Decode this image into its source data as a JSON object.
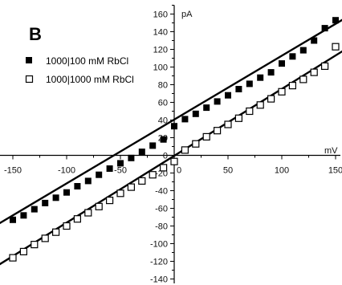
{
  "chart_data": {
    "type": "scatter",
    "panel_label": "B",
    "xlabel": "mV",
    "ylabel": "pA",
    "xlim": [
      -175,
      175
    ],
    "ylim": [
      -145,
      170
    ],
    "x_ticks": [
      -150,
      -100,
      -50,
      0,
      50,
      100,
      150
    ],
    "y_ticks": [
      -140,
      -120,
      -100,
      -80,
      -60,
      -40,
      -20,
      0,
      20,
      40,
      60,
      80,
      100,
      120,
      140,
      160
    ],
    "legend_position": "top-left",
    "series": [
      {
        "name": "1000|100 mM RbCl",
        "marker": "filled-square",
        "color": "#000000",
        "x": [
          -150,
          -140,
          -130,
          -120,
          -110,
          -100,
          -90,
          -80,
          -70,
          -60,
          -50,
          -40,
          -30,
          -20,
          -10,
          0,
          10,
          20,
          30,
          40,
          50,
          60,
          70,
          80,
          90,
          100,
          110,
          120,
          130,
          140,
          150
        ],
        "y": [
          -73,
          -68,
          -61,
          -54,
          -48,
          -42,
          -35,
          -29,
          -22,
          -15,
          -9,
          -3,
          4,
          11,
          18,
          33,
          41,
          47,
          54,
          61,
          68,
          75,
          81,
          88,
          94,
          104,
          112,
          119,
          130,
          144,
          153
        ],
        "fit": {
          "x": [
            -175,
            175
          ],
          "y": [
            -86,
            167
          ]
        }
      },
      {
        "name": "1000|1000 mM RbCl",
        "marker": "open-square",
        "color": "#000000",
        "x": [
          -150,
          -140,
          -130,
          -120,
          -110,
          -100,
          -90,
          -80,
          -70,
          -60,
          -50,
          -40,
          -30,
          -20,
          -10,
          0,
          10,
          20,
          30,
          40,
          50,
          60,
          70,
          80,
          90,
          100,
          110,
          120,
          130,
          140,
          150
        ],
        "y": [
          -116,
          -109,
          -101,
          -94,
          -87,
          -80,
          -72,
          -65,
          -58,
          -51,
          -43,
          -36,
          -29,
          -22,
          -14,
          -7,
          6,
          13,
          21,
          28,
          35,
          42,
          50,
          57,
          64,
          72,
          79,
          86,
          94,
          101,
          123
        ],
        "fit": {
          "x": [
            -175,
            175
          ],
          "y": [
            -133,
            132
          ]
        }
      }
    ]
  }
}
